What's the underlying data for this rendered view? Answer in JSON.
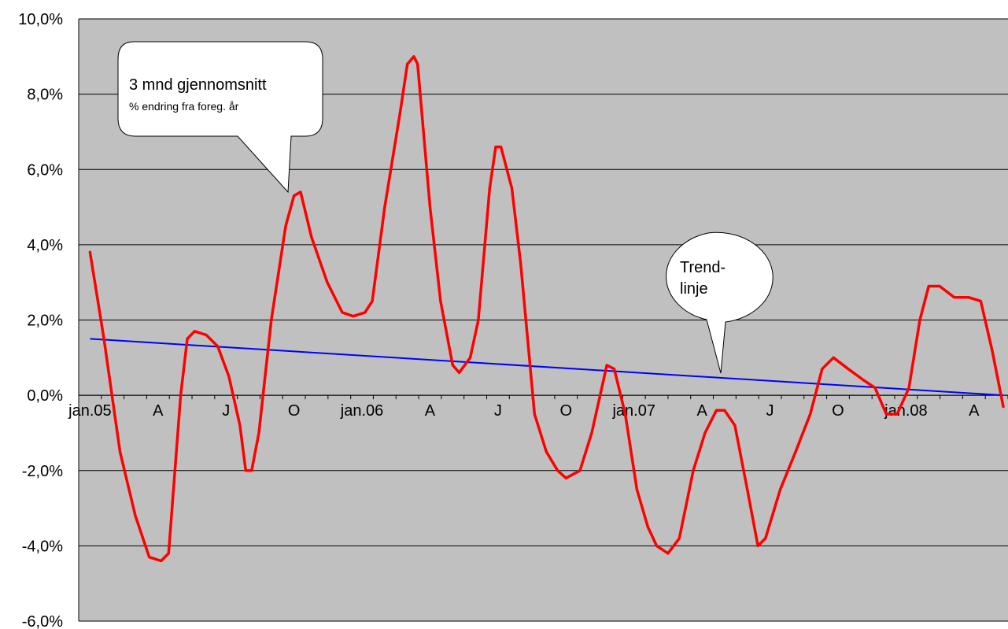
{
  "chart_data": {
    "type": "line",
    "title": "",
    "xlabel": "",
    "ylabel": "",
    "ylim": [
      -6.0,
      10.0
    ],
    "grid": true,
    "colors": {
      "plot_background": "#c0c0c0",
      "gridline": "#000000",
      "series": "#ff0000",
      "trend": "#0000ff",
      "callout_fill": "#ffffff"
    },
    "y_ticks": [
      {
        "value": 10,
        "label": "10,0%"
      },
      {
        "value": 8,
        "label": "8,0%"
      },
      {
        "value": 6,
        "label": "6,0%"
      },
      {
        "value": 4,
        "label": "4,0%"
      },
      {
        "value": 2,
        "label": "2,0%"
      },
      {
        "value": 0,
        "label": "0,0%"
      },
      {
        "value": -2,
        "label": "-2,0%"
      },
      {
        "value": -4,
        "label": "-4,0%"
      },
      {
        "value": -6,
        "label": "-6,0%"
      }
    ],
    "x_labels": [
      "jan.05",
      "A",
      "J",
      "O",
      "jan.06",
      "A",
      "J",
      "O",
      "jan.07",
      "A",
      "J",
      "O",
      "jan.08",
      "A"
    ],
    "x_period": {
      "start": "2005-01",
      "end": "2008-05"
    },
    "series": [
      {
        "values": [
          [
            "2005-01-01",
            3.8
          ],
          [
            "2005-01-20",
            1.5
          ],
          [
            "2005-02-10",
            -1.5
          ],
          [
            "2005-03-01",
            -3.2
          ],
          [
            "2005-03-20",
            -4.3
          ],
          [
            "2005-04-05",
            -4.4
          ],
          [
            "2005-04-15",
            -4.2
          ],
          [
            "2005-05-01",
            0.0
          ],
          [
            "2005-05-10",
            1.5
          ],
          [
            "2005-05-20",
            1.7
          ],
          [
            "2005-06-05",
            1.6
          ],
          [
            "2005-06-20",
            1.3
          ],
          [
            "2005-07-05",
            0.5
          ],
          [
            "2005-07-20",
            -0.8
          ],
          [
            "2005-07-28",
            -2.0
          ],
          [
            "2005-08-05",
            -2.0
          ],
          [
            "2005-08-15",
            -1.0
          ],
          [
            "2005-09-01",
            2.0
          ],
          [
            "2005-09-20",
            4.5
          ],
          [
            "2005-10-01",
            5.3
          ],
          [
            "2005-10-10",
            5.4
          ],
          [
            "2005-10-25",
            4.2
          ],
          [
            "2005-11-15",
            3.0
          ],
          [
            "2005-12-05",
            2.2
          ],
          [
            "2005-12-20",
            2.1
          ],
          [
            "2006-01-05",
            2.2
          ],
          [
            "2006-01-15",
            2.5
          ],
          [
            "2006-02-01",
            5.0
          ],
          [
            "2006-02-20",
            7.5
          ],
          [
            "2006-03-01",
            8.8
          ],
          [
            "2006-03-10",
            9.0
          ],
          [
            "2006-03-15",
            8.8
          ],
          [
            "2006-04-01",
            5.0
          ],
          [
            "2006-04-15",
            2.5
          ],
          [
            "2006-05-01",
            0.8
          ],
          [
            "2006-05-10",
            0.6
          ],
          [
            "2006-05-25",
            1.0
          ],
          [
            "2006-06-05",
            2.0
          ],
          [
            "2006-06-20",
            5.5
          ],
          [
            "2006-06-28",
            6.6
          ],
          [
            "2006-07-05",
            6.6
          ],
          [
            "2006-07-20",
            5.5
          ],
          [
            "2006-08-01",
            3.5
          ],
          [
            "2006-08-20",
            -0.5
          ],
          [
            "2006-09-05",
            -1.5
          ],
          [
            "2006-09-20",
            -2.0
          ],
          [
            "2006-10-01",
            -2.2
          ],
          [
            "2006-10-20",
            -2.0
          ],
          [
            "2006-11-05",
            -1.0
          ],
          [
            "2006-11-25",
            0.8
          ],
          [
            "2006-12-05",
            0.7
          ],
          [
            "2006-12-20",
            -0.5
          ],
          [
            "2007-01-05",
            -2.5
          ],
          [
            "2007-01-20",
            -3.5
          ],
          [
            "2007-02-01",
            -4.0
          ],
          [
            "2007-02-15",
            -4.2
          ],
          [
            "2007-03-01",
            -3.8
          ],
          [
            "2007-03-20",
            -2.0
          ],
          [
            "2007-04-05",
            -1.0
          ],
          [
            "2007-04-20",
            -0.4
          ],
          [
            "2007-05-01",
            -0.4
          ],
          [
            "2007-05-15",
            -0.8
          ],
          [
            "2007-06-01",
            -2.5
          ],
          [
            "2007-06-15",
            -4.0
          ],
          [
            "2007-06-25",
            -3.8
          ],
          [
            "2007-07-15",
            -2.5
          ],
          [
            "2007-08-05",
            -1.5
          ],
          [
            "2007-08-25",
            -0.5
          ],
          [
            "2007-09-10",
            0.7
          ],
          [
            "2007-09-25",
            1.0
          ],
          [
            "2007-10-15",
            0.7
          ],
          [
            "2007-11-05",
            0.4
          ],
          [
            "2007-11-20",
            0.2
          ],
          [
            "2007-12-05",
            -0.5
          ],
          [
            "2007-12-20",
            -0.5
          ],
          [
            "2008-01-05",
            0.2
          ],
          [
            "2008-01-20",
            2.0
          ],
          [
            "2008-02-01",
            2.9
          ],
          [
            "2008-02-15",
            2.9
          ],
          [
            "2008-03-05",
            2.6
          ],
          [
            "2008-03-25",
            2.6
          ],
          [
            "2008-04-10",
            2.5
          ],
          [
            "2008-04-25",
            1.2
          ],
          [
            "2008-05-10",
            -0.3
          ]
        ]
      },
      {
        "values": [
          [
            "2005-01-01",
            1.5
          ],
          [
            "2008-05-10",
            0.0
          ]
        ]
      }
    ],
    "annotations": [
      {
        "line1": "3 mnd gjennomsnitt",
        "line2": "% endring fra foreg. år"
      },
      {
        "line1": "Trend-",
        "line2": "linje"
      }
    ]
  }
}
